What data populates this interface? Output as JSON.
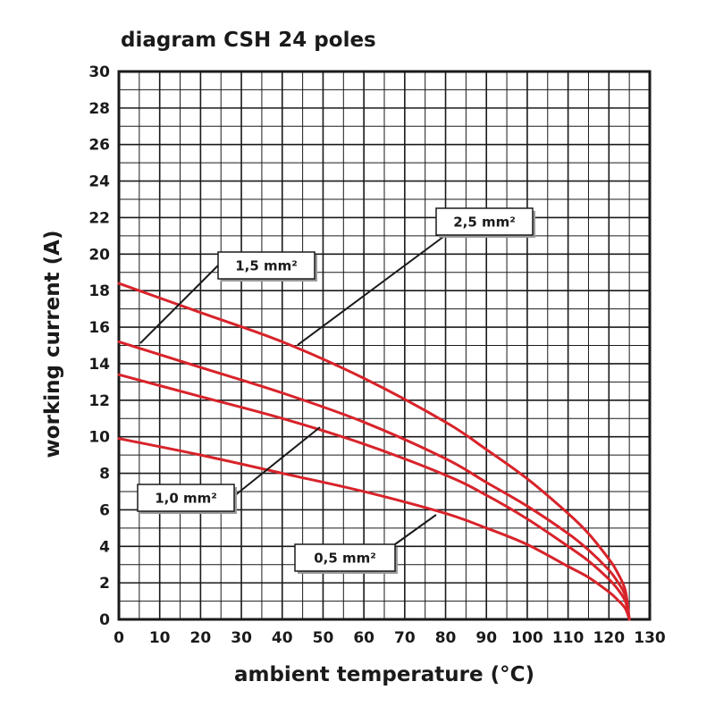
{
  "chart_data": {
    "type": "line",
    "title": "diagram CSH 24 poles",
    "xlabel": "ambient temperature (°C)",
    "ylabel": "working current (A)",
    "xlim": [
      0,
      130
    ],
    "ylim": [
      0,
      30
    ],
    "xticks": [
      "0",
      "10",
      "20",
      "30",
      "40",
      "50",
      "60",
      "70",
      "80",
      "90",
      "100",
      "110",
      "120",
      "130"
    ],
    "yticks": [
      "0",
      "2",
      "4",
      "6",
      "8",
      "10",
      "12",
      "14",
      "16",
      "18",
      "20",
      "22",
      "24",
      "26",
      "28",
      "30"
    ],
    "grid": true,
    "series": [
      {
        "name": "2,5 mm²",
        "x": [
          0,
          20,
          40,
          60,
          80,
          90,
          100,
          110,
          115,
          120,
          122,
          124,
          125
        ],
        "y": [
          18.4,
          16.8,
          15.2,
          13.2,
          10.8,
          9.3,
          7.7,
          5.8,
          4.7,
          3.3,
          2.6,
          1.6,
          0
        ]
      },
      {
        "name": "1,5 mm²",
        "x": [
          0,
          20,
          40,
          60,
          80,
          90,
          100,
          110,
          115,
          120,
          122,
          124,
          125
        ],
        "y": [
          15.2,
          13.8,
          12.4,
          10.8,
          8.8,
          7.5,
          6.2,
          4.7,
          3.8,
          2.7,
          2.1,
          1.3,
          0
        ]
      },
      {
        "name": "1,0 mm²",
        "x": [
          0,
          20,
          40,
          60,
          80,
          90,
          100,
          110,
          115,
          120,
          122,
          124,
          125
        ],
        "y": [
          13.4,
          12.2,
          11.0,
          9.6,
          7.9,
          6.8,
          5.5,
          4.0,
          3.2,
          2.2,
          1.7,
          1.0,
          0
        ]
      },
      {
        "name": "0,5 mm²",
        "x": [
          0,
          20,
          40,
          60,
          80,
          90,
          100,
          110,
          115,
          120,
          122,
          124,
          125
        ],
        "y": [
          9.9,
          9.0,
          8.0,
          7.0,
          5.8,
          5.0,
          4.1,
          2.9,
          2.3,
          1.5,
          1.1,
          0.6,
          0
        ]
      }
    ],
    "annotations": [
      {
        "text": "2,5 mm²",
        "series": "2,5 mm²"
      },
      {
        "text": "1,5 mm²",
        "series": "1,5 mm²"
      },
      {
        "text": "1,0 mm²",
        "series": "1,0 mm²"
      },
      {
        "text": "0,5 mm²",
        "series": "0,5 mm²"
      }
    ],
    "colors": {
      "curve": "#d8232a",
      "grid": "#1a1a1a",
      "leader": "#1a1a1a"
    }
  }
}
